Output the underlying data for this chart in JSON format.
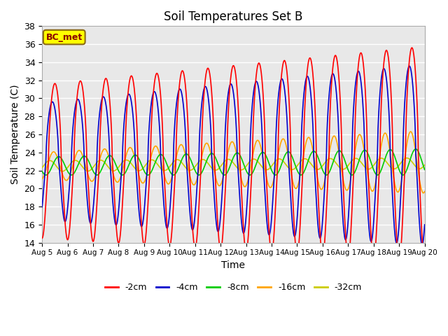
{
  "title": "Soil Temperatures Set B",
  "xlabel": "Time",
  "ylabel": "Soil Temperature (C)",
  "ylim": [
    14,
    38
  ],
  "xtick_labels": [
    "Aug 5",
    "Aug 6",
    "Aug 7",
    "Aug 8",
    "Aug 9",
    "Aug 10",
    "Aug 11",
    "Aug 12",
    "Aug 13",
    "Aug 14",
    "Aug 15",
    "Aug 16",
    "Aug 17",
    "Aug 18",
    "Aug 19",
    "Aug 20"
  ],
  "ytick_values": [
    14,
    16,
    18,
    20,
    22,
    24,
    26,
    28,
    30,
    32,
    34,
    36,
    38
  ],
  "site_label": "BC_met",
  "site_label_bg": "#FFFF00",
  "site_label_border": "#8B6914",
  "legend_entries": [
    "-2cm",
    "-4cm",
    "-8cm",
    "-16cm",
    "-32cm"
  ],
  "line_colors": [
    "#FF0000",
    "#0000CC",
    "#00CC00",
    "#FFA500",
    "#CCCC00"
  ],
  "bg_color": "#E8E8E8",
  "fig_bg_color": "#FFFFFF",
  "grid_color": "#FFFFFF",
  "n_days": 15,
  "points_per_day": 144
}
